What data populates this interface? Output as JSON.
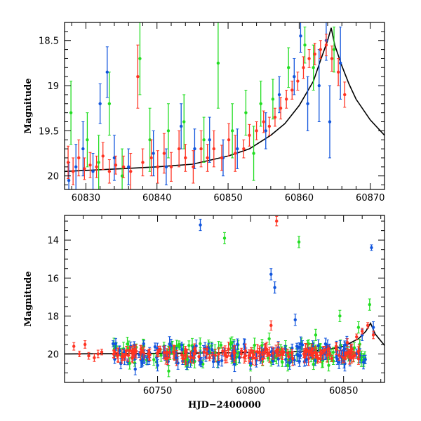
{
  "chart_data": [
    {
      "type": "scatter",
      "panel": "top",
      "xlabel": "",
      "ylabel": "Magnitude",
      "xlim": [
        60827,
        60872
      ],
      "ylim": [
        20.15,
        18.3
      ],
      "y_inverted": true,
      "xticks_major": [
        60830,
        60840,
        60850,
        60860,
        60870
      ],
      "xtick_labels": [
        "60830",
        "60840",
        "60850",
        "60860",
        "60870"
      ],
      "xticks_minor_step": 2,
      "yticks_major": [
        18.5,
        19,
        19.5,
        20
      ],
      "ytick_labels": [
        "18.5",
        "19",
        "19.5",
        "20"
      ],
      "yticks_minor_step": 0.1,
      "series_colors": {
        "green": "#22dd22",
        "blue": "#1155dd",
        "red": "#ff3322"
      },
      "model_curve": {
        "color": "#000000",
        "x": [
          60827,
          60835,
          60840,
          60845,
          60850,
          60853,
          60856,
          60858,
          60860,
          60862,
          60863,
          60864,
          60864.5,
          60865,
          60866,
          60867,
          60868,
          60870,
          60872
        ],
        "y": [
          19.95,
          19.92,
          19.9,
          19.87,
          19.78,
          19.7,
          19.55,
          19.42,
          19.22,
          18.95,
          18.72,
          18.5,
          18.36,
          18.55,
          18.78,
          18.98,
          19.15,
          19.38,
          19.55
        ]
      },
      "points": [
        {
          "s": "red",
          "x": 60827.5,
          "y": 19.85,
          "e": 0.18
        },
        {
          "s": "red",
          "x": 60828.2,
          "y": 19.95,
          "e": 0.15
        },
        {
          "s": "red",
          "x": 60829.0,
          "y": 19.8,
          "e": 0.2
        },
        {
          "s": "red",
          "x": 60829.8,
          "y": 19.92,
          "e": 0.12
        },
        {
          "s": "red",
          "x": 60830.6,
          "y": 19.88,
          "e": 0.14
        },
        {
          "s": "red",
          "x": 60831.5,
          "y": 19.9,
          "e": 0.12
        },
        {
          "s": "red",
          "x": 60832.4,
          "y": 19.78,
          "e": 0.15
        },
        {
          "s": "red",
          "x": 60833.3,
          "y": 19.95,
          "e": 0.13
        },
        {
          "s": "red",
          "x": 60834.2,
          "y": 19.88,
          "e": 0.1
        },
        {
          "s": "red",
          "x": 60835.3,
          "y": 19.9,
          "e": 0.12
        },
        {
          "s": "red",
          "x": 60836.3,
          "y": 19.95,
          "e": 0.2
        },
        {
          "s": "red",
          "x": 60837.3,
          "y": 18.9,
          "e": 0.35
        },
        {
          "s": "red",
          "x": 60838.0,
          "y": 19.85,
          "e": 0.15
        },
        {
          "s": "red",
          "x": 60839.2,
          "y": 19.8,
          "e": 0.2
        },
        {
          "s": "red",
          "x": 60840.1,
          "y": 19.9,
          "e": 0.18
        },
        {
          "s": "red",
          "x": 60841.0,
          "y": 19.75,
          "e": 0.22
        },
        {
          "s": "red",
          "x": 60842.0,
          "y": 19.9,
          "e": 0.16
        },
        {
          "s": "red",
          "x": 60843.1,
          "y": 19.7,
          "e": 0.2
        },
        {
          "s": "red",
          "x": 60844.0,
          "y": 19.8,
          "e": 0.15
        },
        {
          "s": "red",
          "x": 60845.1,
          "y": 19.9,
          "e": 0.18
        },
        {
          "s": "red",
          "x": 60846.2,
          "y": 19.7,
          "e": 0.2
        },
        {
          "s": "red",
          "x": 60847.1,
          "y": 19.8,
          "e": 0.15
        },
        {
          "s": "red",
          "x": 60848.0,
          "y": 19.7,
          "e": 0.2
        },
        {
          "s": "red",
          "x": 60849.1,
          "y": 19.8,
          "e": 0.14
        },
        {
          "s": "red",
          "x": 60850.1,
          "y": 19.6,
          "e": 0.18
        },
        {
          "s": "red",
          "x": 60851.0,
          "y": 19.75,
          "e": 0.2
        },
        {
          "s": "red",
          "x": 60852.2,
          "y": 19.7,
          "e": 0.1
        },
        {
          "s": "red",
          "x": 60853.0,
          "y": 19.55,
          "e": 0.12
        },
        {
          "s": "red",
          "x": 60854.0,
          "y": 19.5,
          "e": 0.1
        },
        {
          "s": "red",
          "x": 60855.0,
          "y": 19.4,
          "e": 0.12
        },
        {
          "s": "red",
          "x": 60855.8,
          "y": 19.45,
          "e": 0.1
        },
        {
          "s": "red",
          "x": 60856.6,
          "y": 19.35,
          "e": 0.1
        },
        {
          "s": "red",
          "x": 60857.4,
          "y": 19.25,
          "e": 0.12
        },
        {
          "s": "red",
          "x": 60858.2,
          "y": 19.15,
          "e": 0.1
        },
        {
          "s": "red",
          "x": 60859.0,
          "y": 19.05,
          "e": 0.1
        },
        {
          "s": "red",
          "x": 60859.8,
          "y": 18.95,
          "e": 0.1
        },
        {
          "s": "red",
          "x": 60860.6,
          "y": 18.8,
          "e": 0.12
        },
        {
          "s": "red",
          "x": 60861.4,
          "y": 18.7,
          "e": 0.1
        },
        {
          "s": "red",
          "x": 60862.2,
          "y": 18.65,
          "e": 0.12
        },
        {
          "s": "red",
          "x": 60863.0,
          "y": 18.6,
          "e": 0.1
        },
        {
          "s": "red",
          "x": 60863.8,
          "y": 18.55,
          "e": 0.12
        },
        {
          "s": "red",
          "x": 60864.6,
          "y": 18.7,
          "e": 0.14
        },
        {
          "s": "red",
          "x": 60865.5,
          "y": 18.85,
          "e": 0.15
        },
        {
          "s": "red",
          "x": 60866.4,
          "y": 19.1,
          "e": 0.14
        },
        {
          "s": "blue",
          "x": 60827.6,
          "y": 20.05,
          "e": 0.2
        },
        {
          "s": "blue",
          "x": 60828.6,
          "y": 19.9,
          "e": 0.25
        },
        {
          "s": "blue",
          "x": 60829.6,
          "y": 19.7,
          "e": 0.3
        },
        {
          "s": "blue",
          "x": 60831.0,
          "y": 19.95,
          "e": 0.2
        },
        {
          "s": "blue",
          "x": 60832.0,
          "y": 19.2,
          "e": 0.22
        },
        {
          "s": "blue",
          "x": 60833.0,
          "y": 18.85,
          "e": 0.28
        },
        {
          "s": "blue",
          "x": 60834.0,
          "y": 19.8,
          "e": 0.25
        },
        {
          "s": "blue",
          "x": 60836.0,
          "y": 19.9,
          "e": 0.2
        },
        {
          "s": "blue",
          "x": 60839.5,
          "y": 19.75,
          "e": 0.25
        },
        {
          "s": "blue",
          "x": 60841.3,
          "y": 19.9,
          "e": 0.2
        },
        {
          "s": "blue",
          "x": 60843.4,
          "y": 19.45,
          "e": 0.25
        },
        {
          "s": "blue",
          "x": 60845.3,
          "y": 19.7,
          "e": 0.22
        },
        {
          "s": "blue",
          "x": 60847.4,
          "y": 19.6,
          "e": 0.25
        },
        {
          "s": "blue",
          "x": 60849.3,
          "y": 19.8,
          "e": 0.2
        },
        {
          "s": "blue",
          "x": 60851.3,
          "y": 19.7,
          "e": 0.22
        },
        {
          "s": "blue",
          "x": 60855.3,
          "y": 19.5,
          "e": 0.2
        },
        {
          "s": "blue",
          "x": 60857.2,
          "y": 19.1,
          "e": 0.2
        },
        {
          "s": "blue",
          "x": 60859.3,
          "y": 18.9,
          "e": 0.2
        },
        {
          "s": "blue",
          "x": 60860.2,
          "y": 18.45,
          "e": 0.18
        },
        {
          "s": "blue",
          "x": 60861.2,
          "y": 19.2,
          "e": 0.3
        },
        {
          "s": "blue",
          "x": 60862.8,
          "y": 19.0,
          "e": 0.4
        },
        {
          "s": "blue",
          "x": 60863.8,
          "y": 18.5,
          "e": 0.22
        },
        {
          "s": "blue",
          "x": 60864.3,
          "y": 19.4,
          "e": 0.4
        },
        {
          "s": "blue",
          "x": 60865.8,
          "y": 18.75,
          "e": 0.4
        },
        {
          "s": "green",
          "x": 60827.9,
          "y": 19.3,
          "e": 0.35
        },
        {
          "s": "green",
          "x": 60830.2,
          "y": 19.6,
          "e": 0.3
        },
        {
          "s": "green",
          "x": 60831.8,
          "y": 19.85,
          "e": 0.3
        },
        {
          "s": "green",
          "x": 60833.3,
          "y": 19.2,
          "e": 0.35
        },
        {
          "s": "green",
          "x": 60835.1,
          "y": 20.0,
          "e": 0.3
        },
        {
          "s": "green",
          "x": 60837.6,
          "y": 18.7,
          "e": 0.4
        },
        {
          "s": "green",
          "x": 60839.0,
          "y": 19.6,
          "e": 0.35
        },
        {
          "s": "green",
          "x": 60841.6,
          "y": 19.5,
          "e": 0.3
        },
        {
          "s": "green",
          "x": 60843.8,
          "y": 19.4,
          "e": 0.3
        },
        {
          "s": "green",
          "x": 60846.6,
          "y": 19.6,
          "e": 0.25
        },
        {
          "s": "green",
          "x": 60848.6,
          "y": 18.75,
          "e": 0.5
        },
        {
          "s": "green",
          "x": 60850.6,
          "y": 19.5,
          "e": 0.3
        },
        {
          "s": "green",
          "x": 60852.5,
          "y": 19.3,
          "e": 0.25
        },
        {
          "s": "green",
          "x": 60853.6,
          "y": 19.75,
          "e": 0.3
        },
        {
          "s": "green",
          "x": 60854.6,
          "y": 19.2,
          "e": 0.25
        },
        {
          "s": "green",
          "x": 60856.3,
          "y": 19.15,
          "e": 0.22
        },
        {
          "s": "green",
          "x": 60858.5,
          "y": 18.8,
          "e": 0.22
        },
        {
          "s": "green",
          "x": 60860.8,
          "y": 18.55,
          "e": 0.2
        },
        {
          "s": "green",
          "x": 60862.0,
          "y": 18.8,
          "e": 0.25
        },
        {
          "s": "green",
          "x": 60864.9,
          "y": 18.6,
          "e": 0.25
        }
      ]
    },
    {
      "type": "scatter",
      "panel": "bottom",
      "xlabel": "HJD−2400000",
      "ylabel": "Magnitude",
      "xlim": [
        60700,
        60872
      ],
      "ylim": [
        21.5,
        12.7
      ],
      "y_inverted": true,
      "xticks_major": [
        60750,
        60800,
        60850
      ],
      "xtick_labels": [
        "60750",
        "60800",
        "60850"
      ],
      "xticks_minor_step": 10,
      "yticks_major": [
        14,
        16,
        18,
        20
      ],
      "ytick_labels": [
        "14",
        "16",
        "18",
        "20"
      ],
      "yticks_minor_step": 0.5,
      "series_colors": {
        "green": "#22dd22",
        "blue": "#1155dd",
        "red": "#ff3322"
      },
      "model_curve": {
        "color": "#000000",
        "x": [
          60700,
          60740,
          60780,
          60820,
          60840,
          60850,
          60858,
          60862,
          60864.5,
          60867,
          60872
        ],
        "y": [
          20.0,
          19.98,
          19.95,
          19.9,
          19.8,
          19.6,
          19.2,
          18.8,
          18.38,
          18.95,
          19.55
        ]
      },
      "points": [
        {
          "s": "red",
          "x": 60705,
          "y": 19.6,
          "e": 0.2
        },
        {
          "s": "red",
          "x": 60708,
          "y": 20.0,
          "e": 0.15
        },
        {
          "s": "red",
          "x": 60711,
          "y": 19.5,
          "e": 0.2
        },
        {
          "s": "red",
          "x": 60713,
          "y": 20.1,
          "e": 0.18
        },
        {
          "s": "red",
          "x": 60716,
          "y": 20.2,
          "e": 0.2
        },
        {
          "s": "red",
          "x": 60718,
          "y": 20.0,
          "e": 0.2
        },
        {
          "s": "red",
          "x": 60720,
          "y": 19.9,
          "e": 0.15
        },
        {
          "s": "red",
          "x": 60727,
          "y": 19.9,
          "e": 0.15
        },
        {
          "s": "red",
          "x": 60735,
          "y": 19.8,
          "e": 0.2
        },
        {
          "s": "red",
          "x": 60745,
          "y": 20.0,
          "e": 0.2
        },
        {
          "s": "red",
          "x": 60755,
          "y": 19.9,
          "e": 0.18
        },
        {
          "s": "red",
          "x": 60765,
          "y": 19.8,
          "e": 0.2
        },
        {
          "s": "red",
          "x": 60775,
          "y": 19.9,
          "e": 0.2
        },
        {
          "s": "red",
          "x": 60785,
          "y": 19.85,
          "e": 0.2
        },
        {
          "s": "red",
          "x": 60795,
          "y": 20.0,
          "e": 0.2
        },
        {
          "s": "red",
          "x": 60805,
          "y": 19.9,
          "e": 0.2
        },
        {
          "s": "red",
          "x": 60811,
          "y": 18.5,
          "e": 0.25
        },
        {
          "s": "red",
          "x": 60814,
          "y": 13.0,
          "e": 0.25
        },
        {
          "s": "red",
          "x": 60820,
          "y": 19.95,
          "e": 0.2
        },
        {
          "s": "red",
          "x": 60830,
          "y": 19.9,
          "e": 0.2
        },
        {
          "s": "red",
          "x": 60840,
          "y": 19.8,
          "e": 0.2
        },
        {
          "s": "red",
          "x": 60846,
          "y": 19.6,
          "e": 0.2
        },
        {
          "s": "red",
          "x": 60852,
          "y": 19.4,
          "e": 0.2
        },
        {
          "s": "red",
          "x": 60857,
          "y": 19.1,
          "e": 0.15
        },
        {
          "s": "red",
          "x": 60860,
          "y": 18.8,
          "e": 0.15
        },
        {
          "s": "red",
          "x": 60863,
          "y": 18.5,
          "e": 0.15
        },
        {
          "s": "red",
          "x": 60866,
          "y": 19.0,
          "e": 0.2
        },
        {
          "s": "blue",
          "x": 60738,
          "y": 20.8,
          "e": 0.3
        },
        {
          "s": "blue",
          "x": 60742,
          "y": 20.3,
          "e": 0.3
        },
        {
          "s": "blue",
          "x": 60750,
          "y": 20.6,
          "e": 0.3
        },
        {
          "s": "blue",
          "x": 60760,
          "y": 20.2,
          "e": 0.3
        },
        {
          "s": "blue",
          "x": 60773,
          "y": 13.2,
          "e": 0.3
        },
        {
          "s": "blue",
          "x": 60780,
          "y": 20.4,
          "e": 0.3
        },
        {
          "s": "blue",
          "x": 60790,
          "y": 20.1,
          "e": 0.3
        },
        {
          "s": "blue",
          "x": 60800,
          "y": 20.5,
          "e": 0.3
        },
        {
          "s": "blue",
          "x": 60811,
          "y": 15.8,
          "e": 0.3
        },
        {
          "s": "blue",
          "x": 60813,
          "y": 16.5,
          "e": 0.3
        },
        {
          "s": "blue",
          "x": 60824,
          "y": 18.2,
          "e": 0.3
        },
        {
          "s": "blue",
          "x": 60830,
          "y": 20.3,
          "e": 0.3
        },
        {
          "s": "blue",
          "x": 60840,
          "y": 20.0,
          "e": 0.3
        },
        {
          "s": "blue",
          "x": 60850,
          "y": 19.8,
          "e": 0.3
        },
        {
          "s": "blue",
          "x": 60860,
          "y": 19.0,
          "e": 0.3
        },
        {
          "s": "blue",
          "x": 60865,
          "y": 14.4,
          "e": 0.15
        },
        {
          "s": "blue",
          "x": 60866,
          "y": 18.6,
          "e": 0.3
        },
        {
          "s": "green",
          "x": 60735,
          "y": 20.5,
          "e": 0.3
        },
        {
          "s": "green",
          "x": 60748,
          "y": 20.3,
          "e": 0.3
        },
        {
          "s": "green",
          "x": 60756,
          "y": 20.9,
          "e": 0.3
        },
        {
          "s": "green",
          "x": 60766,
          "y": 20.3,
          "e": 0.3
        },
        {
          "s": "green",
          "x": 60786,
          "y": 13.9,
          "e": 0.3
        },
        {
          "s": "green",
          "x": 60790,
          "y": 19.4,
          "e": 0.3
        },
        {
          "s": "green",
          "x": 60800,
          "y": 20.6,
          "e": 0.3
        },
        {
          "s": "green",
          "x": 60810,
          "y": 19.2,
          "e": 0.3
        },
        {
          "s": "green",
          "x": 60820,
          "y": 20.6,
          "e": 0.3
        },
        {
          "s": "green",
          "x": 60826,
          "y": 14.1,
          "e": 0.3
        },
        {
          "s": "green",
          "x": 60835,
          "y": 19.0,
          "e": 0.3
        },
        {
          "s": "green",
          "x": 60842,
          "y": 20.6,
          "e": 0.3
        },
        {
          "s": "green",
          "x": 60848,
          "y": 18.0,
          "e": 0.3
        },
        {
          "s": "green",
          "x": 60858,
          "y": 18.6,
          "e": 0.3
        },
        {
          "s": "green",
          "x": 60864,
          "y": 17.4,
          "e": 0.3
        }
      ],
      "band": {
        "x_from": 60726,
        "x_to": 60862,
        "y_center": 20.0,
        "y_spread": 0.55,
        "count_per_series": 140
      }
    }
  ]
}
